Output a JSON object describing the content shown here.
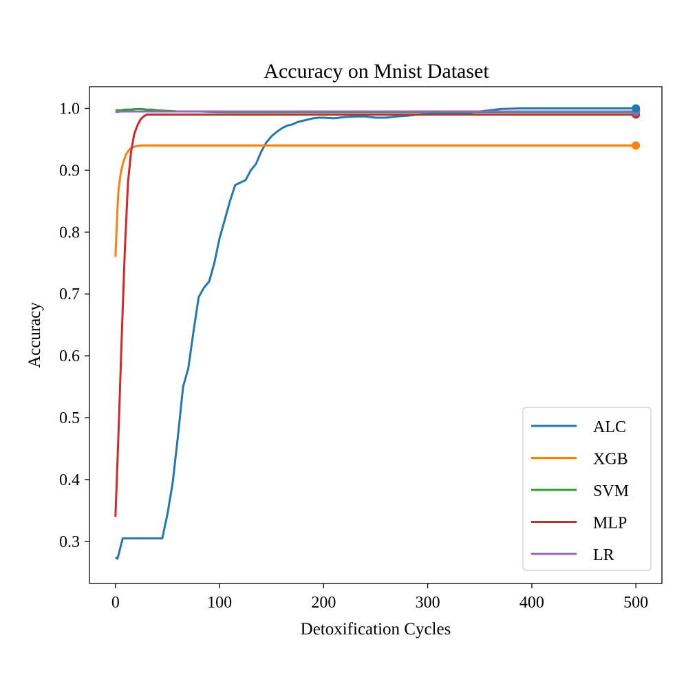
{
  "chart_data": {
    "type": "line",
    "title": "Accuracy on Mnist Dataset",
    "xlabel": "Detoxification Cycles",
    "ylabel": "Accuracy",
    "xlim": [
      -25,
      525
    ],
    "ylim": [
      0.232,
      1.035
    ],
    "xticks": [
      0,
      100,
      200,
      300,
      400,
      500
    ],
    "xtick_labels": [
      "0",
      "100",
      "200",
      "300",
      "400",
      "500"
    ],
    "yticks": [
      0.3,
      0.4,
      0.5,
      0.6,
      0.7,
      0.8,
      0.9,
      1.0
    ],
    "ytick_labels": [
      "0.3",
      "0.4",
      "0.5",
      "0.6",
      "0.7",
      "0.8",
      "0.9",
      "1.0"
    ],
    "grid": false,
    "legend_position": "lower-right",
    "series": [
      {
        "name": "ALC",
        "color": "#1f77b4",
        "x": [
          0,
          2,
          7,
          15,
          25,
          35,
          45,
          50,
          55,
          60,
          65,
          70,
          75,
          80,
          85,
          90,
          95,
          100,
          105,
          110,
          115,
          120,
          125,
          130,
          135,
          140,
          145,
          150,
          155,
          160,
          165,
          170,
          175,
          180,
          185,
          190,
          195,
          200,
          210,
          220,
          230,
          240,
          250,
          260,
          270,
          280,
          290,
          300,
          320,
          340,
          350,
          360,
          370,
          390,
          400,
          450,
          500
        ],
        "y": [
          0.274,
          0.272,
          0.305,
          0.305,
          0.305,
          0.305,
          0.305,
          0.345,
          0.395,
          0.47,
          0.55,
          0.58,
          0.64,
          0.695,
          0.71,
          0.72,
          0.75,
          0.79,
          0.82,
          0.85,
          0.876,
          0.88,
          0.884,
          0.9,
          0.91,
          0.93,
          0.945,
          0.955,
          0.962,
          0.968,
          0.972,
          0.974,
          0.978,
          0.98,
          0.982,
          0.984,
          0.985,
          0.985,
          0.984,
          0.986,
          0.987,
          0.987,
          0.985,
          0.985,
          0.987,
          0.988,
          0.99,
          0.991,
          0.992,
          0.993,
          0.995,
          0.997,
          0.999,
          1.0,
          1.0,
          1.0,
          1.0
        ]
      },
      {
        "name": "XGB",
        "color": "#ff7f0e",
        "x": [
          0,
          1,
          2,
          3,
          5,
          7,
          10,
          13,
          16,
          20,
          25,
          30,
          40,
          60,
          100,
          200,
          300,
          400,
          500
        ],
        "y": [
          0.76,
          0.8,
          0.84,
          0.87,
          0.895,
          0.91,
          0.925,
          0.933,
          0.937,
          0.939,
          0.94,
          0.94,
          0.94,
          0.94,
          0.94,
          0.94,
          0.94,
          0.94,
          0.94
        ]
      },
      {
        "name": "SVM",
        "color": "#2ca02c",
        "x": [
          0,
          5,
          10,
          15,
          20,
          25,
          30,
          35,
          40,
          50,
          60,
          80,
          100,
          200,
          300,
          400,
          500
        ],
        "y": [
          0.997,
          0.997,
          0.998,
          0.998,
          0.999,
          0.999,
          0.998,
          0.998,
          0.997,
          0.996,
          0.995,
          0.995,
          0.994,
          0.994,
          0.994,
          0.994,
          0.994
        ]
      },
      {
        "name": "MLP",
        "color": "#d62728",
        "x": [
          0,
          3,
          6,
          9,
          12,
          15,
          18,
          21,
          24,
          27,
          30,
          35,
          40,
          60,
          100,
          200,
          300,
          400,
          500
        ],
        "y": [
          0.34,
          0.48,
          0.63,
          0.77,
          0.88,
          0.93,
          0.958,
          0.972,
          0.982,
          0.987,
          0.99,
          0.99,
          0.99,
          0.99,
          0.99,
          0.99,
          0.99,
          0.99,
          0.99
        ]
      },
      {
        "name": "LR",
        "color": "#9467bd",
        "x": [
          0,
          5,
          10,
          100,
          200,
          300,
          400,
          500
        ],
        "y": [
          0.994,
          0.995,
          0.995,
          0.995,
          0.995,
          0.995,
          0.995,
          0.995
        ]
      }
    ],
    "end_markers": [
      {
        "series": "XGB",
        "x": 500,
        "y": 0.94
      },
      {
        "series": "MLP",
        "x": 500,
        "y": 0.99
      },
      {
        "series": "SVM",
        "x": 500,
        "y": 0.994
      },
      {
        "series": "LR",
        "x": 500,
        "y": 0.995
      },
      {
        "series": "ALC",
        "x": 500,
        "y": 1.0
      }
    ]
  }
}
